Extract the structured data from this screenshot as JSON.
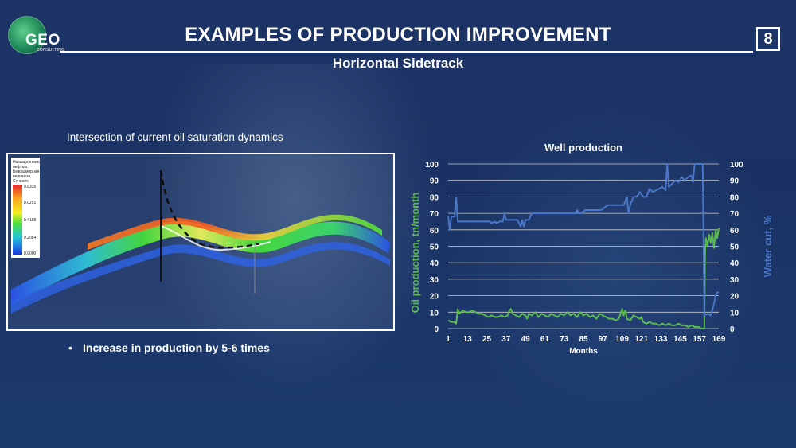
{
  "brand": {
    "logo_text": "GEO",
    "logo_sub": "CONSULTING"
  },
  "header": {
    "title": "EXAMPLES OF PRODUCTION IMPROVEMENT",
    "page_number": "8",
    "subtitle": "Horizontal Sidetrack"
  },
  "left_panel": {
    "caption": "Intersection of current oil saturation dynamics",
    "legend_title": [
      "Насыщенность",
      "нефтью,",
      "Безразмерная",
      "величина,",
      "Сечение"
    ],
    "legend_values": [
      "0.8335",
      "0.6251",
      "0.4168",
      "0.2084",
      "0.0000"
    ],
    "bullet": "Increase in production by 5-6 times"
  },
  "colors": {
    "oil": "#5dbb4d",
    "water": "#4a76c8",
    "grid": "#e8e8e8",
    "background": "#1d3366"
  },
  "chart_data": {
    "type": "line",
    "title": "Well production",
    "xlabel": "Months",
    "ylabel_left": "Oil production, tn/month",
    "ylabel_right": "Water cut, %",
    "xlim": [
      1,
      169
    ],
    "ylim_left": [
      0,
      100
    ],
    "ylim_right": [
      0,
      100
    ],
    "x_ticks": [
      1,
      13,
      25,
      37,
      49,
      61,
      73,
      85,
      97,
      109,
      121,
      133,
      145,
      157,
      169
    ],
    "y_ticks": [
      0,
      10,
      20,
      30,
      40,
      50,
      60,
      70,
      80,
      90,
      100
    ],
    "series": [
      {
        "name": "Oil production",
        "axis": "left",
        "color": "#5dbb4d",
        "points": [
          [
            1,
            5
          ],
          [
            3,
            4
          ],
          [
            5,
            4
          ],
          [
            6,
            3
          ],
          [
            7,
            12
          ],
          [
            8,
            9
          ],
          [
            10,
            11
          ],
          [
            12,
            10
          ],
          [
            14,
            10
          ],
          [
            16,
            11
          ],
          [
            18,
            10
          ],
          [
            20,
            9
          ],
          [
            22,
            9
          ],
          [
            24,
            8
          ],
          [
            26,
            7
          ],
          [
            28,
            8
          ],
          [
            30,
            7
          ],
          [
            32,
            7
          ],
          [
            34,
            8
          ],
          [
            36,
            7
          ],
          [
            38,
            8
          ],
          [
            39,
            11
          ],
          [
            40,
            12
          ],
          [
            41,
            9
          ],
          [
            43,
            8
          ],
          [
            45,
            7
          ],
          [
            47,
            9
          ],
          [
            49,
            8
          ],
          [
            50,
            6
          ],
          [
            51,
            9
          ],
          [
            53,
            8
          ],
          [
            55,
            10
          ],
          [
            57,
            7
          ],
          [
            59,
            9
          ],
          [
            61,
            8
          ],
          [
            63,
            7
          ],
          [
            65,
            9
          ],
          [
            67,
            8
          ],
          [
            69,
            7
          ],
          [
            71,
            9
          ],
          [
            73,
            8
          ],
          [
            75,
            10
          ],
          [
            77,
            8
          ],
          [
            79,
            9
          ],
          [
            81,
            7
          ],
          [
            83,
            10
          ],
          [
            85,
            8
          ],
          [
            87,
            9
          ],
          [
            89,
            7
          ],
          [
            91,
            8
          ],
          [
            93,
            6
          ],
          [
            95,
            9
          ],
          [
            97,
            8
          ],
          [
            99,
            7
          ],
          [
            101,
            6
          ],
          [
            103,
            6
          ],
          [
            105,
            5
          ],
          [
            107,
            6
          ],
          [
            109,
            12
          ],
          [
            110,
            8
          ],
          [
            111,
            11
          ],
          [
            112,
            6
          ],
          [
            114,
            5
          ],
          [
            116,
            8
          ],
          [
            118,
            7
          ],
          [
            120,
            6
          ],
          [
            121,
            7
          ],
          [
            122,
            4
          ],
          [
            124,
            3
          ],
          [
            126,
            4
          ],
          [
            128,
            3
          ],
          [
            130,
            3
          ],
          [
            132,
            2
          ],
          [
            134,
            3
          ],
          [
            136,
            2
          ],
          [
            138,
            3
          ],
          [
            140,
            2
          ],
          [
            142,
            2
          ],
          [
            144,
            3
          ],
          [
            146,
            2
          ],
          [
            148,
            2
          ],
          [
            150,
            1
          ],
          [
            152,
            2
          ],
          [
            154,
            1
          ],
          [
            156,
            1
          ],
          [
            157,
            1
          ],
          [
            158,
            0
          ],
          [
            159,
            0
          ],
          [
            160,
            0
          ],
          [
            160.5,
            47
          ],
          [
            161,
            55
          ],
          [
            162,
            50
          ],
          [
            163,
            57
          ],
          [
            164,
            52
          ],
          [
            165,
            58
          ],
          [
            166,
            49
          ],
          [
            167,
            60
          ],
          [
            168,
            55
          ],
          [
            169,
            61
          ]
        ]
      },
      {
        "name": "Water cut",
        "axis": "right",
        "color": "#4a76c8",
        "points": [
          [
            1,
            68
          ],
          [
            2,
            60
          ],
          [
            3,
            68
          ],
          [
            5,
            68
          ],
          [
            6,
            80
          ],
          [
            7,
            65
          ],
          [
            10,
            65
          ],
          [
            15,
            65
          ],
          [
            20,
            65
          ],
          [
            25,
            65
          ],
          [
            27,
            65
          ],
          [
            28,
            64
          ],
          [
            30,
            65
          ],
          [
            31,
            64
          ],
          [
            33,
            65
          ],
          [
            35,
            65
          ],
          [
            36,
            70
          ],
          [
            37,
            66
          ],
          [
            40,
            66
          ],
          [
            44,
            66
          ],
          [
            46,
            62
          ],
          [
            47,
            66
          ],
          [
            48,
            62
          ],
          [
            49,
            66
          ],
          [
            51,
            66
          ],
          [
            52,
            68
          ],
          [
            53,
            70
          ],
          [
            56,
            70
          ],
          [
            60,
            70
          ],
          [
            64,
            70
          ],
          [
            68,
            70
          ],
          [
            72,
            70
          ],
          [
            76,
            70
          ],
          [
            80,
            70
          ],
          [
            81,
            72
          ],
          [
            82,
            70
          ],
          [
            84,
            70
          ],
          [
            86,
            72
          ],
          [
            88,
            72
          ],
          [
            92,
            72
          ],
          [
            96,
            72
          ],
          [
            100,
            75
          ],
          [
            104,
            75
          ],
          [
            108,
            75
          ],
          [
            110,
            75
          ],
          [
            112,
            80
          ],
          [
            113,
            70
          ],
          [
            114,
            75
          ],
          [
            116,
            80
          ],
          [
            118,
            80
          ],
          [
            120,
            83
          ],
          [
            122,
            80
          ],
          [
            124,
            80
          ],
          [
            126,
            85
          ],
          [
            128,
            83
          ],
          [
            130,
            84
          ],
          [
            132,
            85
          ],
          [
            134,
            86
          ],
          [
            136,
            84
          ],
          [
            137,
            100
          ],
          [
            138,
            86
          ],
          [
            140,
            88
          ],
          [
            142,
            90
          ],
          [
            144,
            89
          ],
          [
            146,
            92
          ],
          [
            148,
            90
          ],
          [
            150,
            92
          ],
          [
            152,
            93
          ],
          [
            153,
            89
          ],
          [
            154,
            100
          ],
          [
            156,
            100
          ],
          [
            158,
            100
          ],
          [
            159,
            100
          ],
          [
            160,
            8
          ],
          [
            162,
            9
          ],
          [
            164,
            8
          ],
          [
            166,
            15
          ],
          [
            167,
            20
          ],
          [
            168,
            22
          ],
          [
            169,
            22
          ]
        ]
      }
    ]
  }
}
